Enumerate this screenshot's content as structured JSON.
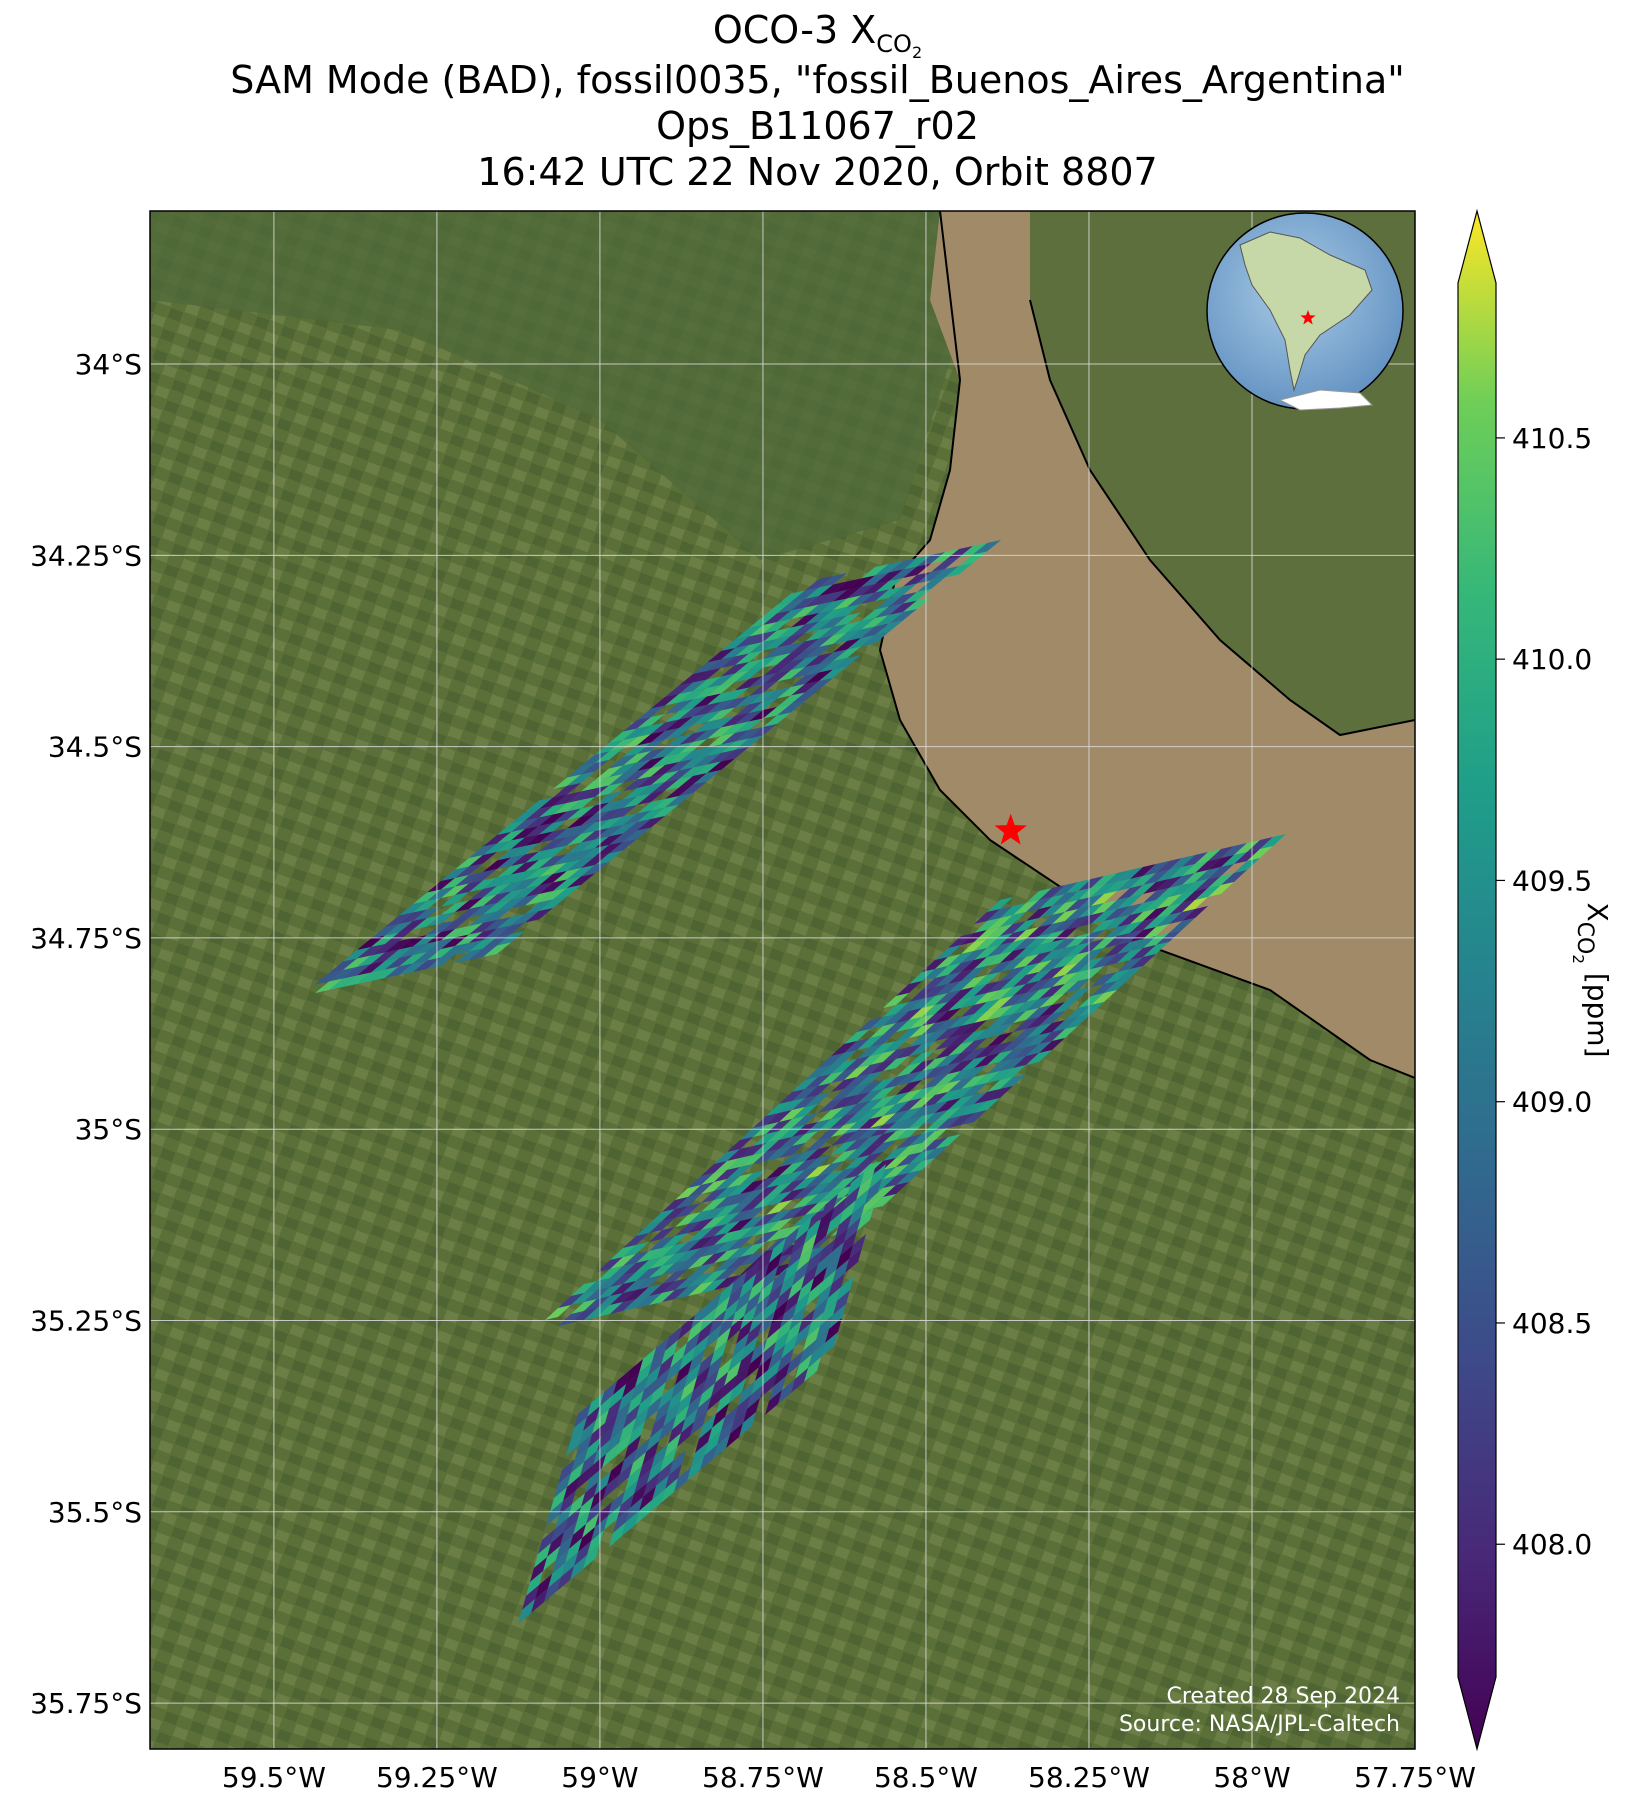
{
  "title": {
    "line1_prefix": "OCO-3 X",
    "line1_sub": "CO",
    "line1_sub2": "2",
    "line2": "SAM Mode (BAD), fossil0035, \"fossil_Buenos_Aires_Argentina\"",
    "line3": "Ops_B11067_r02",
    "line4": "16:42 UTC 22 Nov 2020, Orbit 8807"
  },
  "map": {
    "lon_range": [
      -59.69,
      -57.75
    ],
    "lat_range": [
      -35.81,
      -33.8
    ],
    "lon_ticks": [
      "59.5°W",
      "59.25°W",
      "59°W",
      "58.75°W",
      "58.5°W",
      "58.25°W",
      "58°W",
      "57.75°W"
    ],
    "lon_tick_values": [
      -59.5,
      -59.25,
      -59.0,
      -58.75,
      -58.5,
      -58.25,
      -58.0,
      -57.75
    ],
    "lat_ticks": [
      "34°S",
      "34.25°S",
      "34.5°S",
      "34.75°S",
      "35°S",
      "35.25°S",
      "35.5°S",
      "35.75°S"
    ],
    "lat_tick_values": [
      -34.0,
      -34.25,
      -34.5,
      -34.75,
      -35.0,
      -35.25,
      -35.5,
      -35.75
    ],
    "target_lon": -58.37,
    "target_lat": -34.61,
    "credit_line1": "Created 28 Sep 2024",
    "credit_line2": "Source: NASA/JPL-Caltech",
    "colors": {
      "land": "#5a6f3a",
      "river": "#a08a68",
      "grid": "#d8d8d8",
      "target": "#ff0000"
    }
  },
  "colorbar": {
    "label_prefix": "X",
    "label_sub": "CO",
    "label_sub2": "2",
    "label_suffix": " [ppm]",
    "vmin": 407.7,
    "vmax": 410.85,
    "ticks": [
      "408.0",
      "408.5",
      "409.0",
      "409.5",
      "410.0",
      "410.5"
    ],
    "tick_values": [
      408.0,
      408.5,
      409.0,
      409.5,
      410.0,
      410.5
    ],
    "cmap": "viridis"
  }
}
